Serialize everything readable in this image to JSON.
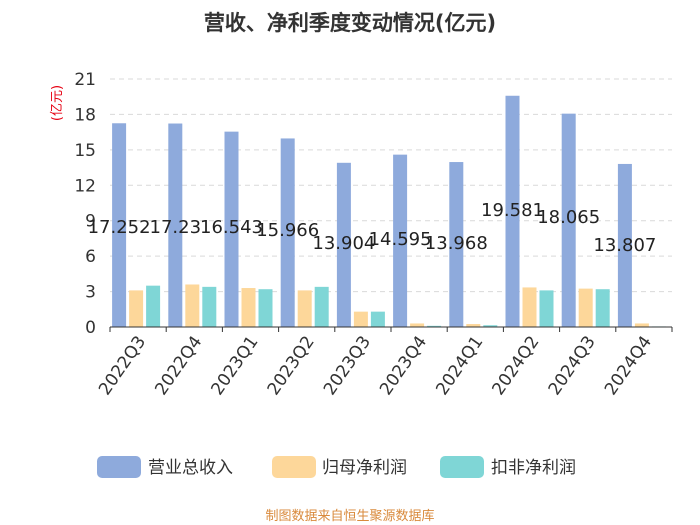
{
  "chart_data": {
    "type": "bar",
    "title": "营收、净利季度变动情况(亿元)",
    "ylabel": "(亿元)",
    "xlabel": "",
    "ylim": [
      0,
      21
    ],
    "yticks": [
      0,
      3,
      6,
      9,
      12,
      15,
      18,
      21
    ],
    "grid": true,
    "legend_position": "bottom",
    "categories": [
      "2022Q3",
      "2022Q4",
      "2023Q1",
      "2023Q2",
      "2023Q3",
      "2023Q4",
      "2024Q1",
      "2024Q2",
      "2024Q3",
      "2024Q4"
    ],
    "series": [
      {
        "name": "营业总收入",
        "color": "#8eaadc",
        "values": [
          17.252,
          17.23,
          16.543,
          15.966,
          13.904,
          14.595,
          13.968,
          19.581,
          18.065,
          13.807
        ],
        "data_labels": [
          "17.252",
          "17.23",
          "16.543",
          "15.966",
          "13.904",
          "14.595",
          "13.968",
          "19.581",
          "18.065",
          "13.807"
        ]
      },
      {
        "name": "归母净利润",
        "color": "#fdd79a",
        "values": [
          3.1,
          3.6,
          3.3,
          3.1,
          1.3,
          0.3,
          0.25,
          3.35,
          3.25,
          0.3
        ]
      },
      {
        "name": "扣非净利润",
        "color": "#7fd6d6",
        "values": [
          3.5,
          3.4,
          3.2,
          3.4,
          1.3,
          0.1,
          0.15,
          3.1,
          3.2,
          0.05
        ]
      }
    ],
    "source": "制图数据来自恒生聚源数据库"
  }
}
